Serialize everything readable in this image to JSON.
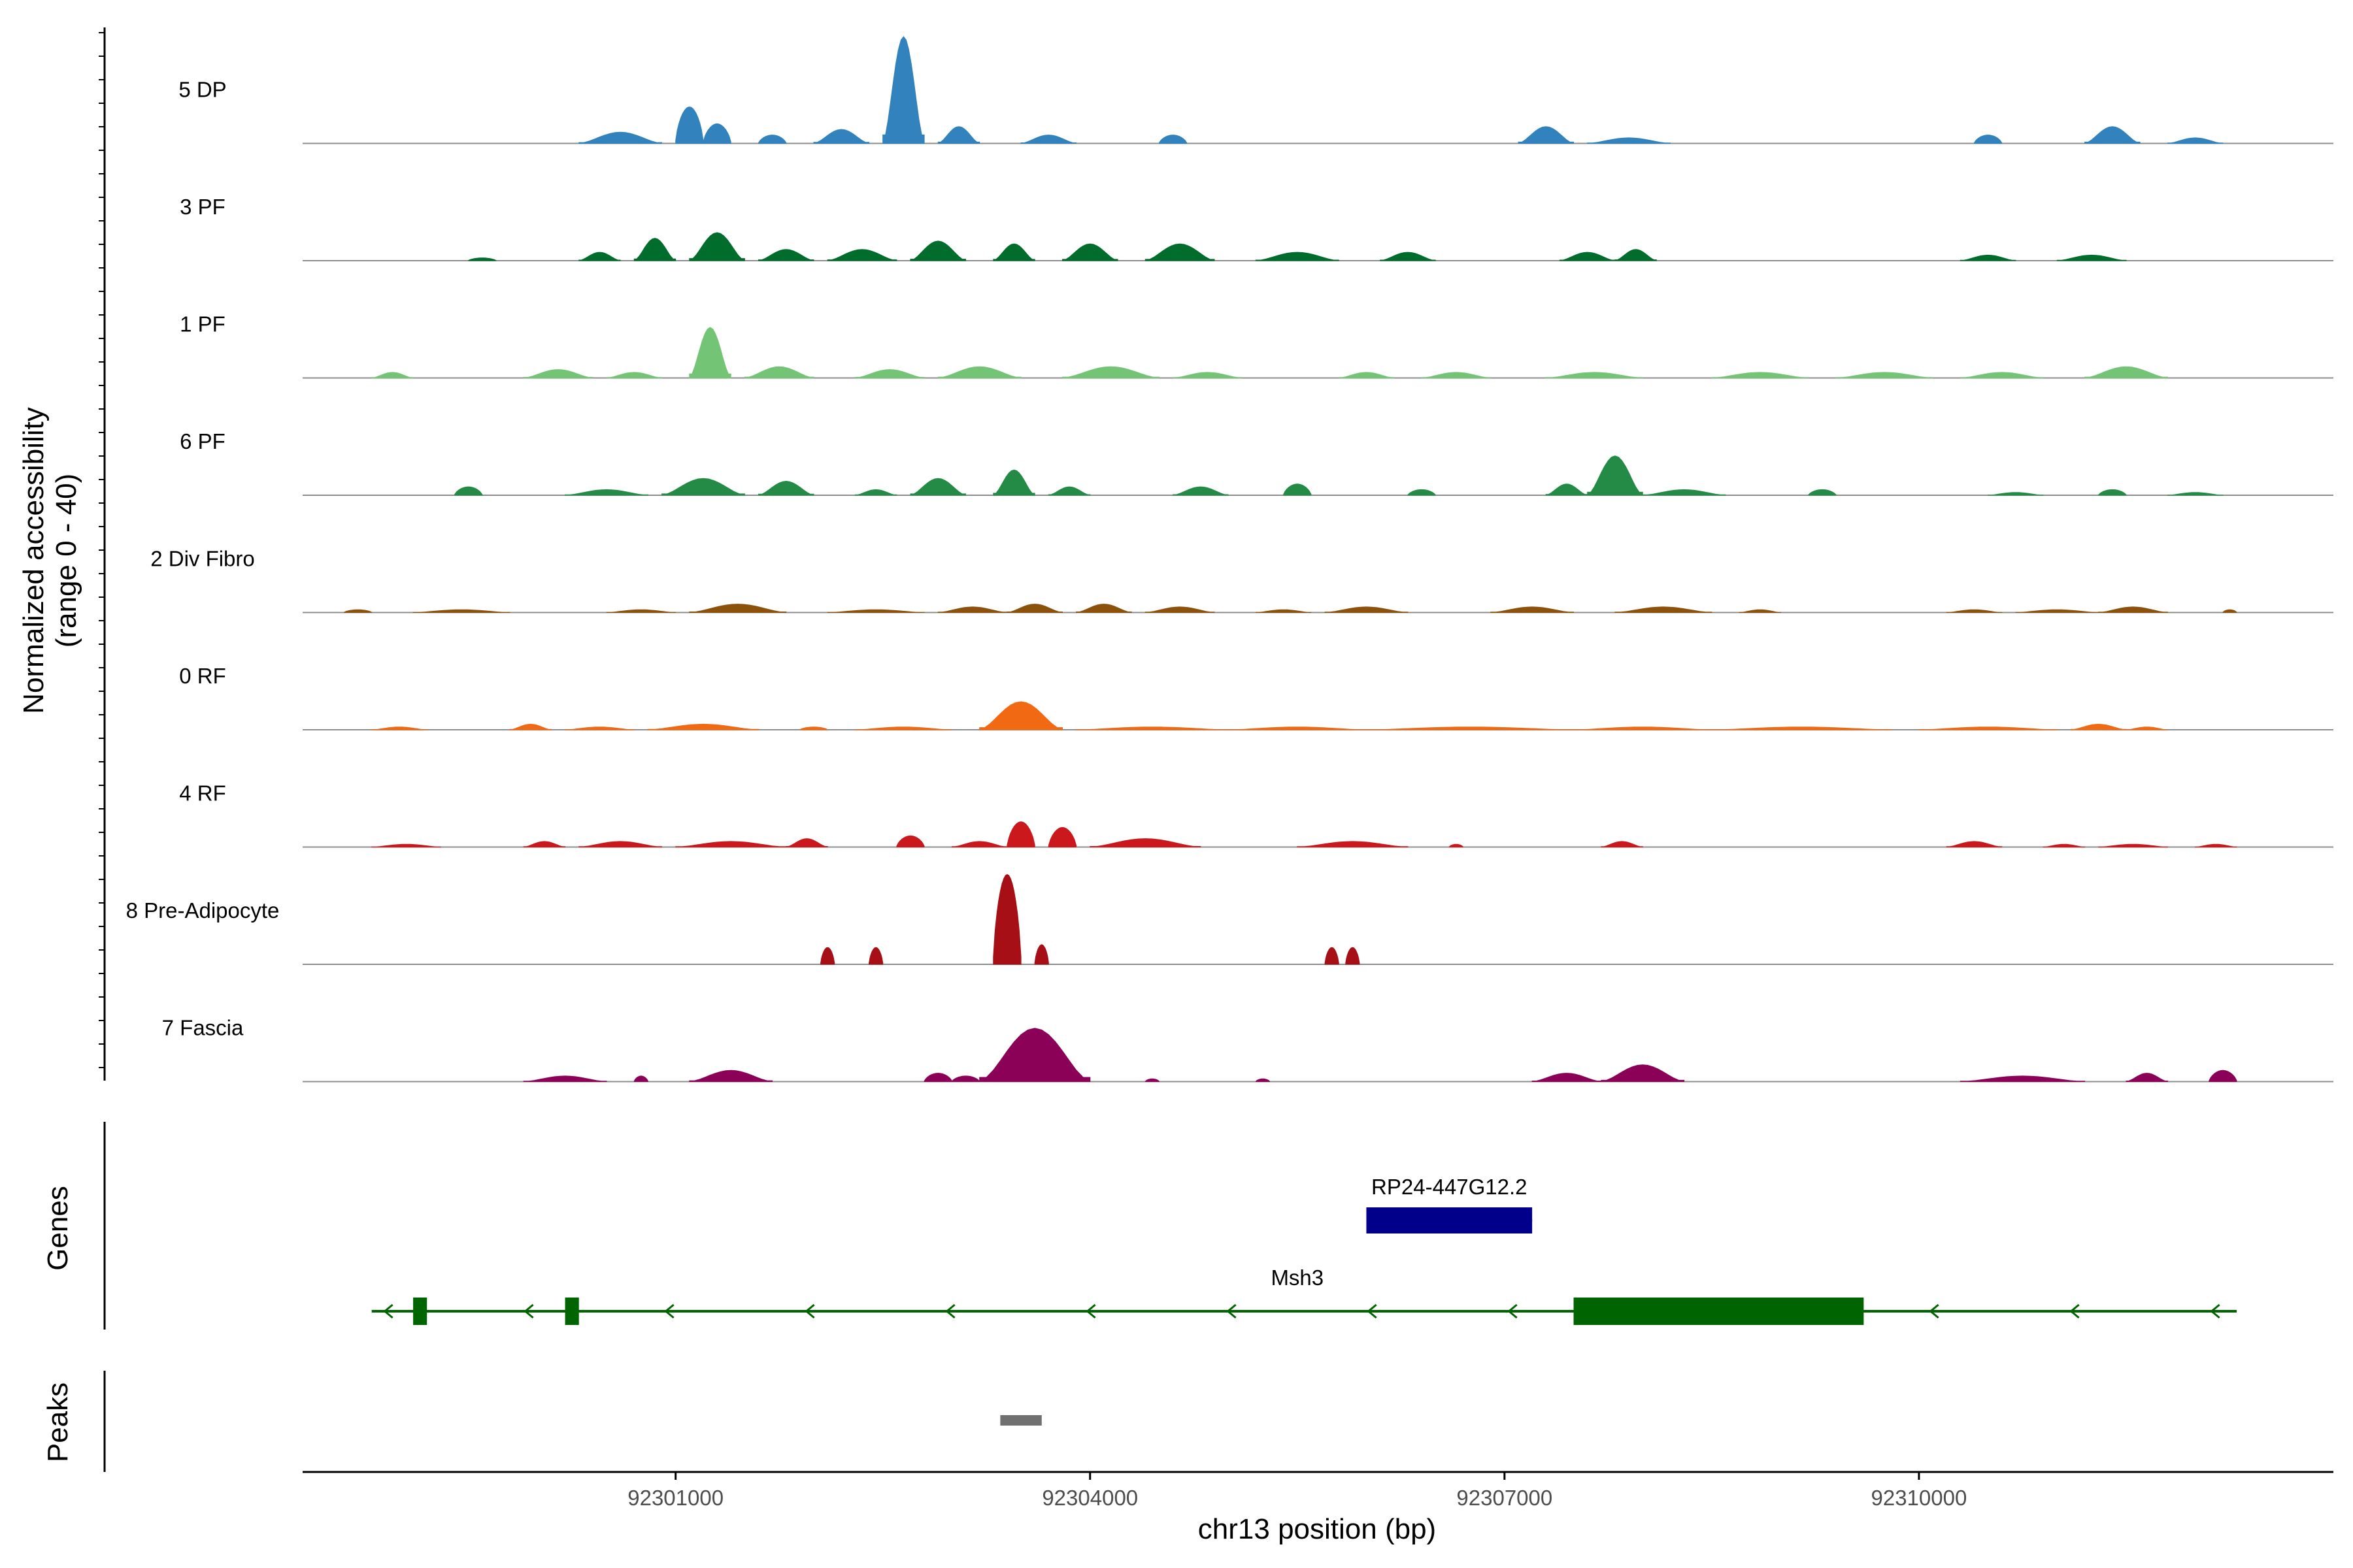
{
  "chart_data": {
    "type": "area",
    "ylabel": "Normalized accessibility\n(range 0 - 40)",
    "xlabel": "chr13 position (bp)",
    "xlim": [
      92298300,
      92313000
    ],
    "ylim": [
      0,
      40
    ],
    "x_ticks": [
      92301000,
      92304000,
      92307000,
      92310000
    ],
    "x_tick_labels": [
      "92301000",
      "92304000",
      "92307000",
      "92310000"
    ],
    "tracks": [
      {
        "name": "5 DP",
        "color": "#3182BD",
        "peaks": [
          {
            "start": 92300300,
            "end": 92300900,
            "height": 4
          },
          {
            "start": 92301000,
            "end": 92301200,
            "height": 13
          },
          {
            "start": 92301200,
            "end": 92301400,
            "height": 7
          },
          {
            "start": 92301600,
            "end": 92301800,
            "height": 3
          },
          {
            "start": 92302000,
            "end": 92302400,
            "height": 5
          },
          {
            "start": 92302500,
            "end": 92302800,
            "height": 38
          },
          {
            "start": 92302900,
            "end": 92303200,
            "height": 6
          },
          {
            "start": 92303500,
            "end": 92303900,
            "height": 3
          },
          {
            "start": 92304500,
            "end": 92304700,
            "height": 3
          },
          {
            "start": 92307100,
            "end": 92307500,
            "height": 6
          },
          {
            "start": 92307600,
            "end": 92308200,
            "height": 2
          },
          {
            "start": 92310400,
            "end": 92310600,
            "height": 3
          },
          {
            "start": 92311200,
            "end": 92311600,
            "height": 6
          },
          {
            "start": 92311800,
            "end": 92312200,
            "height": 2
          }
        ]
      },
      {
        "name": "3 PF",
        "color": "#006D2C",
        "peaks": [
          {
            "start": 92299500,
            "end": 92299700,
            "height": 1
          },
          {
            "start": 92300300,
            "end": 92300600,
            "height": 3
          },
          {
            "start": 92300700,
            "end": 92301000,
            "height": 8
          },
          {
            "start": 92301100,
            "end": 92301500,
            "height": 10
          },
          {
            "start": 92301600,
            "end": 92302000,
            "height": 4
          },
          {
            "start": 92302100,
            "end": 92302600,
            "height": 4
          },
          {
            "start": 92302700,
            "end": 92303100,
            "height": 7
          },
          {
            "start": 92303300,
            "end": 92303600,
            "height": 6
          },
          {
            "start": 92303800,
            "end": 92304200,
            "height": 6
          },
          {
            "start": 92304400,
            "end": 92304900,
            "height": 6
          },
          {
            "start": 92305200,
            "end": 92305800,
            "height": 3
          },
          {
            "start": 92306100,
            "end": 92306500,
            "height": 3
          },
          {
            "start": 92307400,
            "end": 92307800,
            "height": 3
          },
          {
            "start": 92307800,
            "end": 92308100,
            "height": 4
          },
          {
            "start": 92310300,
            "end": 92310700,
            "height": 2
          },
          {
            "start": 92311000,
            "end": 92311500,
            "height": 2
          }
        ]
      },
      {
        "name": "1 PF",
        "color": "#74C476",
        "peaks": [
          {
            "start": 92298800,
            "end": 92299100,
            "height": 2
          },
          {
            "start": 92299900,
            "end": 92300400,
            "height": 3
          },
          {
            "start": 92300500,
            "end": 92300900,
            "height": 2
          },
          {
            "start": 92301100,
            "end": 92301400,
            "height": 18
          },
          {
            "start": 92301500,
            "end": 92302000,
            "height": 4
          },
          {
            "start": 92302300,
            "end": 92302800,
            "height": 3
          },
          {
            "start": 92302900,
            "end": 92303500,
            "height": 4
          },
          {
            "start": 92303800,
            "end": 92304500,
            "height": 4
          },
          {
            "start": 92304600,
            "end": 92305100,
            "height": 2
          },
          {
            "start": 92305800,
            "end": 92306200,
            "height": 2
          },
          {
            "start": 92306400,
            "end": 92306900,
            "height": 2
          },
          {
            "start": 92307300,
            "end": 92308000,
            "height": 2
          },
          {
            "start": 92308500,
            "end": 92309200,
            "height": 2
          },
          {
            "start": 92309400,
            "end": 92310100,
            "height": 2
          },
          {
            "start": 92310300,
            "end": 92310900,
            "height": 2
          },
          {
            "start": 92311200,
            "end": 92311800,
            "height": 4
          }
        ]
      },
      {
        "name": "6 PF",
        "color": "#238B45",
        "peaks": [
          {
            "start": 92299400,
            "end": 92299600,
            "height": 3
          },
          {
            "start": 92300200,
            "end": 92300800,
            "height": 2
          },
          {
            "start": 92300900,
            "end": 92301500,
            "height": 6
          },
          {
            "start": 92301600,
            "end": 92302000,
            "height": 5
          },
          {
            "start": 92302300,
            "end": 92302600,
            "height": 2
          },
          {
            "start": 92302700,
            "end": 92303100,
            "height": 6
          },
          {
            "start": 92303300,
            "end": 92303600,
            "height": 9
          },
          {
            "start": 92303700,
            "end": 92304000,
            "height": 3
          },
          {
            "start": 92304600,
            "end": 92305000,
            "height": 3
          },
          {
            "start": 92305400,
            "end": 92305600,
            "height": 4
          },
          {
            "start": 92306300,
            "end": 92306500,
            "height": 2
          },
          {
            "start": 92307300,
            "end": 92307600,
            "height": 4
          },
          {
            "start": 92307600,
            "end": 92308000,
            "height": 14
          },
          {
            "start": 92308000,
            "end": 92308600,
            "height": 2
          },
          {
            "start": 92309200,
            "end": 92309400,
            "height": 2
          },
          {
            "start": 92310500,
            "end": 92310900,
            "height": 1
          },
          {
            "start": 92311300,
            "end": 92311500,
            "height": 2
          },
          {
            "start": 92311800,
            "end": 92312200,
            "height": 1
          }
        ]
      },
      {
        "name": "2 Div Fibro",
        "color": "#8C510A",
        "peaks": [
          {
            "start": 92298600,
            "end": 92298800,
            "height": 1
          },
          {
            "start": 92299100,
            "end": 92299800,
            "height": 1
          },
          {
            "start": 92300500,
            "end": 92301000,
            "height": 1
          },
          {
            "start": 92301100,
            "end": 92301800,
            "height": 3
          },
          {
            "start": 92302100,
            "end": 92302800,
            "height": 1
          },
          {
            "start": 92302900,
            "end": 92303400,
            "height": 2
          },
          {
            "start": 92303400,
            "end": 92303800,
            "height": 3
          },
          {
            "start": 92303900,
            "end": 92304300,
            "height": 3
          },
          {
            "start": 92304400,
            "end": 92304900,
            "height": 2
          },
          {
            "start": 92305200,
            "end": 92305600,
            "height": 1
          },
          {
            "start": 92305700,
            "end": 92306300,
            "height": 2
          },
          {
            "start": 92306900,
            "end": 92307500,
            "height": 2
          },
          {
            "start": 92307800,
            "end": 92308500,
            "height": 2
          },
          {
            "start": 92308700,
            "end": 92309000,
            "height": 1
          },
          {
            "start": 92310200,
            "end": 92310600,
            "height": 1
          },
          {
            "start": 92310700,
            "end": 92311300,
            "height": 1
          },
          {
            "start": 92311300,
            "end": 92311800,
            "height": 2
          },
          {
            "start": 92312200,
            "end": 92312300,
            "height": 1
          }
        ]
      },
      {
        "name": "0 RF",
        "color": "#F16913",
        "peaks": [
          {
            "start": 92298800,
            "end": 92299200,
            "height": 1
          },
          {
            "start": 92299800,
            "end": 92300100,
            "height": 2
          },
          {
            "start": 92300200,
            "end": 92300700,
            "height": 1
          },
          {
            "start": 92300800,
            "end": 92301600,
            "height": 2
          },
          {
            "start": 92301900,
            "end": 92302100,
            "height": 1
          },
          {
            "start": 92302300,
            "end": 92303000,
            "height": 1
          },
          {
            "start": 92303200,
            "end": 92303800,
            "height": 10
          },
          {
            "start": 92303900,
            "end": 92305000,
            "height": 1
          },
          {
            "start": 92305000,
            "end": 92306000,
            "height": 1
          },
          {
            "start": 92306000,
            "end": 92307500,
            "height": 1
          },
          {
            "start": 92307500,
            "end": 92308500,
            "height": 1
          },
          {
            "start": 92308500,
            "end": 92309800,
            "height": 1
          },
          {
            "start": 92310000,
            "end": 92311000,
            "height": 1
          },
          {
            "start": 92311100,
            "end": 92311500,
            "height": 2
          },
          {
            "start": 92311500,
            "end": 92311800,
            "height": 1
          }
        ]
      },
      {
        "name": "4 RF",
        "color": "#CB181D",
        "peaks": [
          {
            "start": 92298800,
            "end": 92299300,
            "height": 1
          },
          {
            "start": 92299900,
            "end": 92300200,
            "height": 2
          },
          {
            "start": 92300300,
            "end": 92300900,
            "height": 2
          },
          {
            "start": 92301000,
            "end": 92301800,
            "height": 2
          },
          {
            "start": 92301800,
            "end": 92302100,
            "height": 3
          },
          {
            "start": 92302600,
            "end": 92302800,
            "height": 4
          },
          {
            "start": 92303000,
            "end": 92303400,
            "height": 2
          },
          {
            "start": 92303400,
            "end": 92303600,
            "height": 9
          },
          {
            "start": 92303700,
            "end": 92303900,
            "height": 7
          },
          {
            "start": 92304000,
            "end": 92304800,
            "height": 3
          },
          {
            "start": 92305500,
            "end": 92306300,
            "height": 2
          },
          {
            "start": 92306600,
            "end": 92306700,
            "height": 1
          },
          {
            "start": 92307700,
            "end": 92308000,
            "height": 2
          },
          {
            "start": 92310200,
            "end": 92310600,
            "height": 2
          },
          {
            "start": 92310900,
            "end": 92311200,
            "height": 1
          },
          {
            "start": 92311300,
            "end": 92311800,
            "height": 1
          },
          {
            "start": 92312000,
            "end": 92312300,
            "height": 1
          }
        ]
      },
      {
        "name": "8 Pre-Adipocyte",
        "color": "#A50F15",
        "peaks": [
          {
            "start": 92302050,
            "end": 92302150,
            "height": 6
          },
          {
            "start": 92302400,
            "end": 92302500,
            "height": 6
          },
          {
            "start": 92303300,
            "end": 92303500,
            "height": 32
          },
          {
            "start": 92303600,
            "end": 92303700,
            "height": 7
          },
          {
            "start": 92305700,
            "end": 92305800,
            "height": 6
          },
          {
            "start": 92305850,
            "end": 92305950,
            "height": 6
          }
        ]
      },
      {
        "name": "7 Fascia",
        "color": "#8B0157",
        "peaks": [
          {
            "start": 92299900,
            "end": 92300500,
            "height": 2
          },
          {
            "start": 92300700,
            "end": 92300800,
            "height": 2
          },
          {
            "start": 92301100,
            "end": 92301700,
            "height": 4
          },
          {
            "start": 92302800,
            "end": 92303000,
            "height": 3
          },
          {
            "start": 92303000,
            "end": 92303200,
            "height": 2
          },
          {
            "start": 92303200,
            "end": 92304000,
            "height": 19
          },
          {
            "start": 92304400,
            "end": 92304500,
            "height": 1
          },
          {
            "start": 92305200,
            "end": 92305300,
            "height": 1
          },
          {
            "start": 92307200,
            "end": 92307700,
            "height": 3
          },
          {
            "start": 92307700,
            "end": 92308300,
            "height": 6
          },
          {
            "start": 92310300,
            "end": 92311200,
            "height": 2
          },
          {
            "start": 92311500,
            "end": 92311800,
            "height": 3
          },
          {
            "start": 92312100,
            "end": 92312300,
            "height": 4
          }
        ]
      }
    ],
    "genes": [
      {
        "name": "RP24-447G12.2",
        "color": "#00008B",
        "strand": "+",
        "start": 92306000,
        "end": 92307200,
        "exons": [
          [
            92306000,
            92307200
          ]
        ]
      },
      {
        "name": "Msh3",
        "color": "#006400",
        "strand": "-",
        "start": 92298800,
        "end": 92312300,
        "exons": [
          [
            92299100,
            92299200
          ],
          [
            92300200,
            92300300
          ],
          [
            92307500,
            92309600
          ]
        ]
      }
    ],
    "peak_regions": [
      {
        "start": 92303350,
        "end": 92303650,
        "color": "#707070"
      }
    ],
    "section_labels": {
      "genes": "Genes",
      "peaks": "Peaks"
    },
    "grid": false
  }
}
